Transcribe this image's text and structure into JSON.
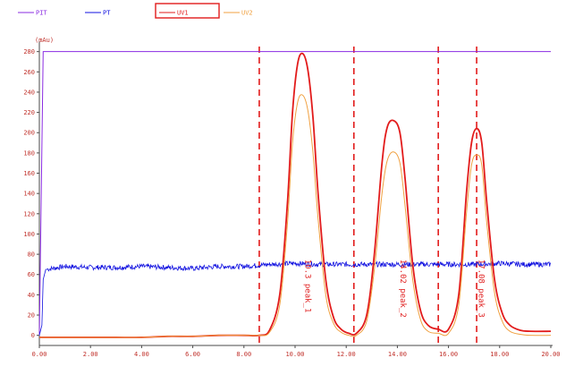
{
  "chart_data": {
    "type": "line",
    "title": "",
    "xlabel": "",
    "ylabel": "",
    "unit_label": "(mAu)",
    "xlim": [
      0,
      20
    ],
    "ylim": [
      -10,
      285
    ],
    "x_ticks": [
      0,
      2,
      4,
      6,
      8,
      10,
      12,
      14,
      16,
      18,
      20
    ],
    "x_tick_labels": [
      "0.00",
      "2.00",
      "4.00",
      "6.00",
      "8.00",
      "10.00",
      "12.00",
      "14.00",
      "16.00",
      "18.00",
      "20.00"
    ],
    "y_ticks": [
      0,
      20,
      40,
      60,
      80,
      100,
      120,
      140,
      160,
      180,
      200,
      220,
      240,
      260,
      280
    ],
    "y_tick_labels": [
      "0",
      "20",
      "40",
      "60",
      "80",
      "100",
      "120",
      "140",
      "160",
      "180",
      "200",
      "220",
      "240",
      "260",
      "280"
    ],
    "grid": false,
    "legend_position": "top-left",
    "series": [
      {
        "name": "PIT",
        "color": "#8a2be2",
        "x": [
          0.0,
          0.15,
          20.0
        ],
        "y": [
          0,
          280,
          280
        ]
      },
      {
        "name": "PT",
        "color": "#1010e0",
        "x": [
          0.0,
          0.1,
          0.15,
          0.25,
          1,
          2,
          3,
          4,
          5,
          6,
          7,
          8,
          9,
          10,
          11,
          12,
          13,
          14,
          15,
          16,
          17,
          18,
          19,
          20
        ],
        "y": [
          0,
          10,
          55,
          65,
          68,
          67,
          67,
          68,
          67,
          66,
          68,
          68,
          70,
          71,
          70,
          70,
          70,
          70,
          70,
          70,
          70,
          71,
          70,
          70
        ]
      },
      {
        "name": "UV1",
        "color": "#e21b1b",
        "x": [
          0,
          1,
          2,
          3,
          4,
          5,
          6,
          7,
          8,
          8.6,
          9.0,
          9.4,
          9.7,
          9.9,
          10.1,
          10.3,
          10.5,
          10.7,
          10.9,
          11.2,
          11.5,
          11.8,
          12.1,
          12.4,
          12.8,
          13.1,
          13.4,
          13.6,
          13.85,
          14.1,
          14.3,
          14.6,
          14.9,
          15.2,
          15.6,
          16.0,
          16.4,
          16.7,
          16.9,
          17.1,
          17.3,
          17.5,
          17.8,
          18.1,
          18.4,
          18.8,
          19.2,
          20.0
        ],
        "y": [
          -2,
          -2,
          -2,
          -2,
          -2,
          -1,
          -1,
          0,
          0,
          0,
          5,
          40,
          130,
          220,
          268,
          278,
          262,
          215,
          140,
          55,
          18,
          6,
          2,
          2,
          20,
          80,
          170,
          205,
          212,
          200,
          155,
          70,
          25,
          10,
          6,
          6,
          40,
          140,
          190,
          204,
          190,
          130,
          55,
          22,
          10,
          5,
          4,
          4
        ]
      },
      {
        "name": "UV2",
        "color": "#f0a040",
        "x": [
          0,
          1,
          2,
          3,
          4,
          5,
          6,
          7,
          8,
          8.6,
          9.0,
          9.4,
          9.7,
          9.9,
          10.1,
          10.3,
          10.5,
          10.7,
          10.9,
          11.2,
          11.5,
          11.8,
          12.1,
          12.4,
          12.8,
          13.1,
          13.4,
          13.6,
          13.85,
          14.1,
          14.3,
          14.6,
          14.9,
          15.2,
          15.6,
          16.0,
          16.4,
          16.7,
          16.9,
          17.1,
          17.3,
          17.5,
          17.8,
          18.1,
          18.4,
          18.8,
          19.2,
          20.0
        ],
        "y": [
          -2,
          -2,
          -2,
          -2,
          -2,
          -1,
          -1,
          0,
          0,
          0,
          3,
          30,
          110,
          190,
          230,
          237,
          222,
          180,
          115,
          40,
          12,
          3,
          0,
          0,
          14,
          65,
          140,
          172,
          181,
          170,
          128,
          55,
          16,
          4,
          2,
          2,
          30,
          120,
          168,
          178,
          168,
          110,
          42,
          14,
          4,
          1,
          0,
          0
        ]
      }
    ],
    "markers": [
      8.6,
      12.3,
      15.6,
      17.1
    ],
    "peak_labels": [
      {
        "text": "10.3 peak_1",
        "x": 10.3
      },
      {
        "text": "14.02 peak_2",
        "x": 14.02
      },
      {
        "text": "17.08 peak_3",
        "x": 17.08
      }
    ]
  }
}
